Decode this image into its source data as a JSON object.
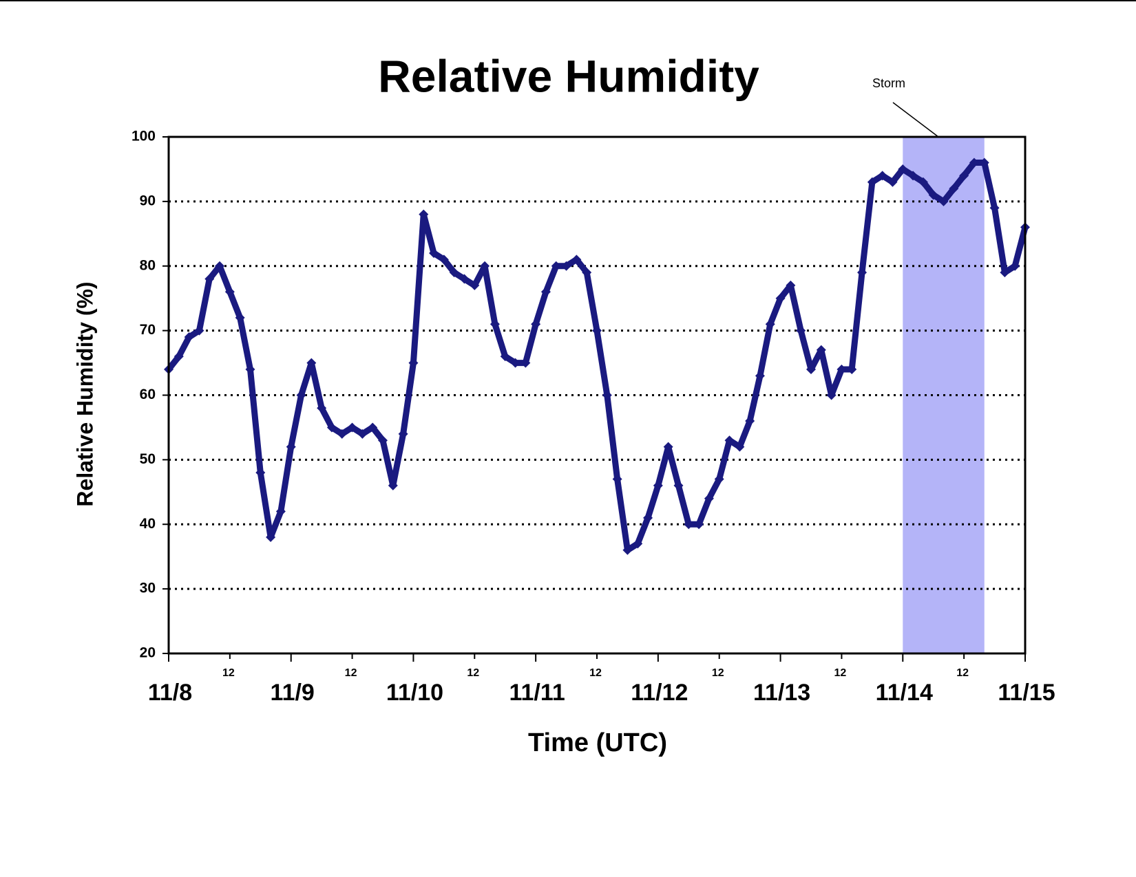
{
  "chart_data": {
    "type": "scatter",
    "title": "Relative Humidity",
    "x_label": "Time (UTC)",
    "y_label": "Relative Humidity (%)",
    "xlim": [
      0,
      168
    ],
    "ylim": [
      20,
      100
    ],
    "xticks": [
      {
        "value": 0,
        "label": "11/8"
      },
      {
        "value": 12,
        "label": "12"
      },
      {
        "value": 24,
        "label": "11/9"
      },
      {
        "value": 36,
        "label": "12"
      },
      {
        "value": 48,
        "label": "11/10"
      },
      {
        "value": 60,
        "label": "12"
      },
      {
        "value": 72,
        "label": "11/11"
      },
      {
        "value": 84,
        "label": "12"
      },
      {
        "value": 96,
        "label": "11/12"
      },
      {
        "value": 108,
        "label": "12"
      },
      {
        "value": 120,
        "label": "11/13"
      },
      {
        "value": 132,
        "label": "12"
      },
      {
        "value": 144,
        "label": "11/14"
      },
      {
        "value": 156,
        "label": "12"
      },
      {
        "value": 168,
        "label": "11/15"
      }
    ],
    "yticks": [
      20,
      30,
      40,
      50,
      60,
      70,
      80,
      90,
      100
    ],
    "grid": true,
    "storm": {
      "label": "Storm",
      "start": 144,
      "end": 160,
      "color": "#b4b4f8"
    },
    "series": [
      {
        "color": "#1a1a80",
        "x": [
          0,
          2,
          4,
          6,
          8,
          10,
          12,
          14,
          16,
          18,
          20,
          22,
          24,
          26,
          28,
          30,
          32,
          34,
          36,
          38,
          40,
          42,
          44,
          46,
          48,
          50,
          52,
          54,
          56,
          58,
          60,
          62,
          64,
          66,
          68,
          70,
          72,
          74,
          76,
          78,
          80,
          82,
          84,
          86,
          88,
          90,
          92,
          94,
          96,
          98,
          100,
          102,
          104,
          106,
          108,
          110,
          112,
          114,
          116,
          118,
          120,
          122,
          124,
          126,
          128,
          130,
          132,
          134,
          136,
          138,
          140,
          142,
          144,
          146,
          148,
          150,
          152,
          154,
          156,
          158,
          160,
          162,
          164,
          166,
          168
        ],
        "values": [
          64,
          66,
          69,
          70,
          78,
          80,
          76,
          72,
          64,
          48,
          38,
          42,
          52,
          60,
          65,
          58,
          55,
          54,
          55,
          54,
          55,
          53,
          46,
          54,
          65,
          88,
          82,
          81,
          79,
          78,
          77,
          80,
          71,
          66,
          65,
          65,
          71,
          76,
          80,
          80,
          81,
          79,
          70,
          60,
          47,
          36,
          37,
          41,
          46,
          52,
          46,
          40,
          40,
          44,
          47,
          53,
          52,
          56,
          63,
          71,
          75,
          77,
          70,
          64,
          67,
          60,
          64,
          64,
          79,
          93,
          94,
          93,
          95,
          94,
          93,
          91,
          90,
          92,
          94,
          96,
          96,
          89,
          79,
          80,
          86
        ]
      }
    ]
  }
}
